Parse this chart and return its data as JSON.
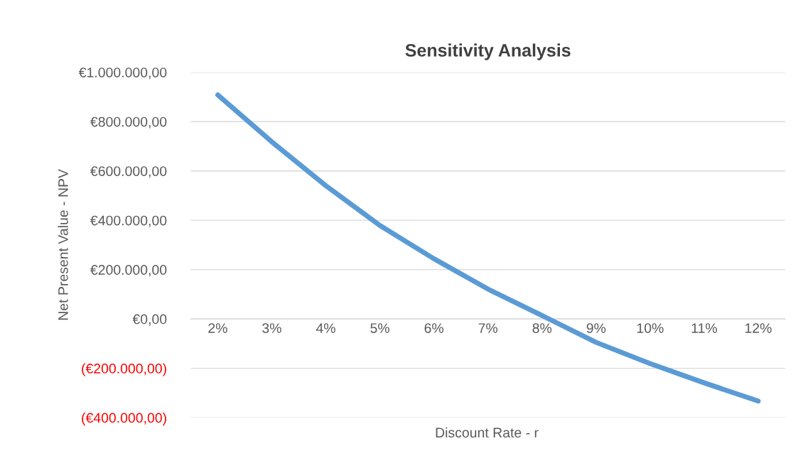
{
  "chart_data": {
    "type": "line",
    "title": "Sensitivity Analysis",
    "xlabel": "Discount Rate - r",
    "ylabel": "Net Present Value - NPV",
    "categories": [
      "2%",
      "3%",
      "4%",
      "5%",
      "6%",
      "7%",
      "8%",
      "9%",
      "10%",
      "11%",
      "12%"
    ],
    "series": [
      {
        "color": "#5b9bd5",
        "values": [
          908000,
          718000,
          540000,
          379000,
          244000,
          121000,
          14000,
          -95000,
          -181000,
          -259000,
          -333000
        ]
      }
    ],
    "ylim": [
      -400000,
      1000000
    ],
    "yticks": [
      {
        "value": -400000,
        "label": "(€400.000,00)"
      },
      {
        "value": -200000,
        "label": "(€200.000,00)"
      },
      {
        "value": 0,
        "label": "€0,00"
      },
      {
        "value": 200000,
        "label": "€200.000,00"
      },
      {
        "value": 400000,
        "label": "€400.000,00"
      },
      {
        "value": 600000,
        "label": "€600.000,00"
      },
      {
        "value": 800000,
        "label": "€800.000,00"
      },
      {
        "value": 1000000,
        "label": "€1.000.000,00"
      }
    ],
    "grid": "y",
    "legend": false,
    "marker": "none",
    "line_style": "solid"
  }
}
